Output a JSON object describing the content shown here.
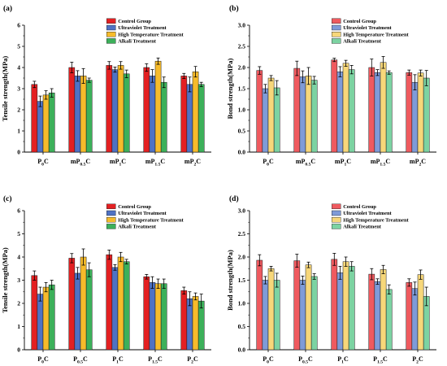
{
  "colors": {
    "control": "#e32022",
    "ultraviolet": "#4f72c4",
    "hightemp": "#f6bb2b",
    "alkali": "#3cb05a",
    "control_light": "#ef5a5f",
    "ultraviolet_light": "#7f9bd8",
    "hightemp_light": "#f7d77a",
    "alkali_light": "#7cd3a2"
  },
  "chart_data": [
    {
      "panel": "(a)",
      "type": "bar",
      "ylabel": "Tensile strength(MPa)",
      "ylim": [
        0,
        6
      ],
      "yticks": [
        "0",
        "1",
        "2",
        "3",
        "4",
        "5",
        "6"
      ],
      "categories": [
        {
          "base": "P",
          "sub": "0",
          "tail": "C"
        },
        {
          "base": "mP",
          "sub": "0.5",
          "tail": "C"
        },
        {
          "base": "mP",
          "sub": "1",
          "tail": "C"
        },
        {
          "base": "mP",
          "sub": "1.5",
          "tail": "C"
        },
        {
          "base": "mP",
          "sub": "2",
          "tail": "C"
        }
      ],
      "series": [
        {
          "name": "Control Group",
          "values": [
            3.2,
            4.0,
            4.1,
            4.0,
            3.6
          ],
          "errors": [
            0.15,
            0.25,
            0.18,
            0.18,
            0.12
          ]
        },
        {
          "name": "Ultraviolet Treatment",
          "values": [
            2.4,
            3.6,
            3.9,
            3.6,
            3.2
          ],
          "errors": [
            0.25,
            0.25,
            0.12,
            0.3,
            0.35
          ]
        },
        {
          "name": "High Temperature Treatment",
          "values": [
            2.7,
            3.6,
            4.1,
            4.3,
            3.8
          ],
          "errors": [
            0.2,
            0.35,
            0.18,
            0.15,
            0.25
          ]
        },
        {
          "name": "Alkali Treatment",
          "values": [
            2.8,
            3.4,
            3.7,
            3.3,
            3.2
          ],
          "errors": [
            0.2,
            0.1,
            0.18,
            0.25,
            0.1
          ]
        }
      ]
    },
    {
      "panel": "(b)",
      "type": "bar",
      "ylabel": "Bond strength(MPa)",
      "ylim": [
        0,
        3
      ],
      "yticks": [
        "0.0",
        "0.5",
        "1.0",
        "1.5",
        "2.0",
        "2.5",
        "3.0"
      ],
      "categories": [
        {
          "base": "P",
          "sub": "0",
          "tail": "C"
        },
        {
          "base": "mP",
          "sub": "0.5",
          "tail": "C"
        },
        {
          "base": "mP",
          "sub": "1",
          "tail": "C"
        },
        {
          "base": "mP",
          "sub": "1.5",
          "tail": "C"
        },
        {
          "base": "mP",
          "sub": "2",
          "tail": "C"
        }
      ],
      "series": [
        {
          "name": "Control Group",
          "values": [
            1.93,
            1.98,
            2.18,
            2.0,
            1.88
          ],
          "errors": [
            0.09,
            0.17,
            0.04,
            0.2,
            0.06
          ]
        },
        {
          "name": "Ultraviolet Treatment",
          "values": [
            1.5,
            1.78,
            1.9,
            1.88,
            1.65
          ],
          "errors": [
            0.1,
            0.14,
            0.12,
            0.07,
            0.18
          ]
        },
        {
          "name": "High Temperature Treatment",
          "values": [
            1.75,
            1.8,
            2.1,
            2.12,
            1.87
          ],
          "errors": [
            0.06,
            0.2,
            0.07,
            0.14,
            0.07
          ]
        },
        {
          "name": "Alkali Treatment",
          "values": [
            1.52,
            1.7,
            1.95,
            1.88,
            1.75
          ],
          "errors": [
            0.17,
            0.09,
            0.1,
            0.04,
            0.18
          ]
        }
      ]
    },
    {
      "panel": "(c)",
      "type": "bar",
      "ylabel": "Tensile strength(MPa)",
      "ylim": [
        0,
        6
      ],
      "yticks": [
        "0",
        "1",
        "2",
        "3",
        "4",
        "5",
        "6"
      ],
      "categories": [
        {
          "base": "P",
          "sub": "0",
          "tail": "C"
        },
        {
          "base": "P",
          "sub": "0.5",
          "tail": "C"
        },
        {
          "base": "P",
          "sub": "1",
          "tail": "C"
        },
        {
          "base": "P",
          "sub": "1.5",
          "tail": "C"
        },
        {
          "base": "P",
          "sub": "2",
          "tail": "C"
        }
      ],
      "series": [
        {
          "name": "Control Group",
          "values": [
            3.2,
            3.95,
            4.1,
            3.15,
            2.55
          ],
          "errors": [
            0.2,
            0.2,
            0.2,
            0.1,
            0.15
          ]
        },
        {
          "name": "Ultraviolet Treatment",
          "values": [
            2.4,
            3.3,
            3.55,
            2.9,
            2.2
          ],
          "errors": [
            0.3,
            0.25,
            0.12,
            0.25,
            0.3
          ]
        },
        {
          "name": "High Temperature Treatment",
          "values": [
            2.7,
            4.0,
            4.0,
            2.85,
            2.3
          ],
          "errors": [
            0.2,
            0.35,
            0.2,
            0.2,
            0.15
          ]
        },
        {
          "name": "Alkali Treatment",
          "values": [
            2.8,
            3.45,
            3.8,
            2.85,
            2.1
          ],
          "errors": [
            0.2,
            0.3,
            0.1,
            0.2,
            0.3
          ]
        }
      ]
    },
    {
      "panel": "(d)",
      "type": "bar",
      "ylabel": "Bond strength(MPa)",
      "ylim": [
        0,
        3
      ],
      "yticks": [
        "0.0",
        "0.5",
        "1.0",
        "1.5",
        "2.0",
        "2.5",
        "3.0"
      ],
      "categories": [
        {
          "base": "P",
          "sub": "0",
          "tail": "C"
        },
        {
          "base": "P",
          "sub": "0.5",
          "tail": "C"
        },
        {
          "base": "P",
          "sub": "1",
          "tail": "C"
        },
        {
          "base": "P",
          "sub": "1.5",
          "tail": "C"
        },
        {
          "base": "P",
          "sub": "2",
          "tail": "C"
        }
      ],
      "series": [
        {
          "name": "Control Group",
          "values": [
            1.93,
            1.92,
            1.95,
            1.63,
            1.45
          ],
          "errors": [
            0.12,
            0.14,
            0.13,
            0.12,
            0.08
          ]
        },
        {
          "name": "Ultraviolet Treatment",
          "values": [
            1.5,
            1.5,
            1.66,
            1.47,
            1.32
          ],
          "errors": [
            0.08,
            0.09,
            0.14,
            0.06,
            0.14
          ]
        },
        {
          "name": "High Temperature Treatment",
          "values": [
            1.75,
            1.83,
            1.9,
            1.73,
            1.62
          ],
          "errors": [
            0.05,
            0.06,
            0.1,
            0.09,
            0.1
          ]
        },
        {
          "name": "Alkali Treatment",
          "values": [
            1.5,
            1.58,
            1.8,
            1.3,
            1.15
          ],
          "errors": [
            0.15,
            0.06,
            0.1,
            0.1,
            0.2
          ]
        }
      ]
    }
  ]
}
